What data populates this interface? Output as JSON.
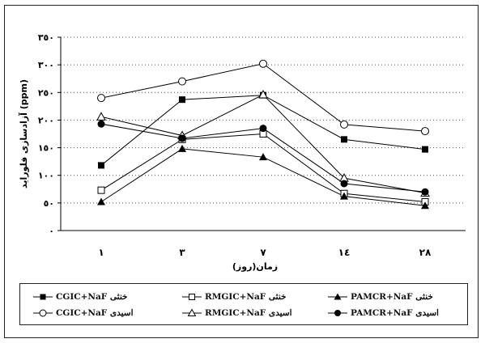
{
  "chart_data": {
    "type": "line",
    "title": "",
    "xlabel": "(زمان(روز",
    "ylabel": "آزادسازی فلوراید (ppm)",
    "categories": [
      "١",
      "٣",
      "٧",
      "١٤",
      "٢٨"
    ],
    "y_ticks": [
      "٠",
      "٥٠",
      "١٠٠",
      "١٥٠",
      "٢٠٠",
      "٢٥٠",
      "٣٠٠",
      "٣٥٠"
    ],
    "ylim": [
      0,
      350
    ],
    "grid": "horizontal-dotted",
    "legend_position": "bottom",
    "series": [
      {
        "name": "CGIC+NaF خنثی",
        "marker": "square-filled",
        "values": [
          118,
          237,
          245,
          165,
          147
        ]
      },
      {
        "name": "RMGIC+NaF خنثی",
        "marker": "square-open",
        "values": [
          73,
          165,
          175,
          67,
          52
        ]
      },
      {
        "name": "PAMCR+NaF خنثی",
        "marker": "triangle-filled",
        "values": [
          52,
          148,
          133,
          62,
          45
        ]
      },
      {
        "name": "CGIC+NaF اسیدی",
        "marker": "circle-open",
        "values": [
          240,
          270,
          302,
          192,
          180
        ]
      },
      {
        "name": "RMGIC+NaF اسیدی",
        "marker": "triangle-open",
        "values": [
          206,
          172,
          246,
          95,
          68
        ]
      },
      {
        "name": "PAMCR+NaF اسیدی",
        "marker": "circle-filled",
        "values": [
          193,
          167,
          185,
          85,
          70
        ]
      }
    ]
  }
}
